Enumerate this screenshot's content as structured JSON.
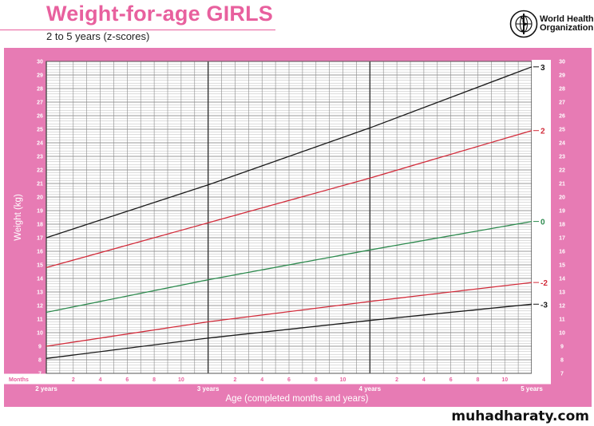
{
  "header": {
    "title": "Weight-for-age GIRLS",
    "subtitle": "2 to 5 years (z-scores)",
    "org_line1": "World Health",
    "org_line2": "Organization"
  },
  "watermark": "muhadharaty.com",
  "colors": {
    "pink": "#e77bb4",
    "title_pink": "#e8609e",
    "red": "#d22b3a",
    "green": "#2d8a4e",
    "black": "#1a1a1a"
  },
  "chart_data": {
    "type": "line",
    "xlabel": "Age (completed months and years)",
    "ylabel": "Weight (kg)",
    "x_unit_label": "Months",
    "x_range": [
      24,
      60
    ],
    "y_range": [
      7,
      30
    ],
    "year_labels": [
      {
        "month": 24,
        "label": "2 years"
      },
      {
        "month": 36,
        "label": "3 years"
      },
      {
        "month": 48,
        "label": "4 years"
      },
      {
        "month": 60,
        "label": "5 years"
      }
    ],
    "month_ticks": [
      {
        "month": 26,
        "label": "2"
      },
      {
        "month": 28,
        "label": "4"
      },
      {
        "month": 30,
        "label": "6"
      },
      {
        "month": 32,
        "label": "8"
      },
      {
        "month": 34,
        "label": "10"
      },
      {
        "month": 38,
        "label": "2"
      },
      {
        "month": 40,
        "label": "4"
      },
      {
        "month": 42,
        "label": "6"
      },
      {
        "month": 44,
        "label": "8"
      },
      {
        "month": 46,
        "label": "10"
      },
      {
        "month": 50,
        "label": "2"
      },
      {
        "month": 52,
        "label": "4"
      },
      {
        "month": 54,
        "label": "6"
      },
      {
        "month": 56,
        "label": "8"
      },
      {
        "month": 58,
        "label": "10"
      }
    ],
    "y_ticks": [
      7,
      8,
      9,
      10,
      11,
      12,
      13,
      14,
      15,
      16,
      17,
      18,
      19,
      20,
      21,
      22,
      23,
      24,
      25,
      26,
      27,
      28,
      29,
      30
    ],
    "grid": true,
    "series": [
      {
        "name": "3",
        "color": "#1a1a1a",
        "x": [
          24,
          36,
          48,
          60
        ],
        "y": [
          17.0,
          20.9,
          25.1,
          29.6
        ]
      },
      {
        "name": "2",
        "color": "#d22b3a",
        "x": [
          24,
          36,
          48,
          60
        ],
        "y": [
          14.8,
          18.1,
          21.4,
          24.9
        ]
      },
      {
        "name": "0",
        "color": "#2d8a4e",
        "x": [
          24,
          36,
          48,
          60
        ],
        "y": [
          11.5,
          13.9,
          16.1,
          18.2
        ]
      },
      {
        "name": "-2",
        "color": "#d22b3a",
        "x": [
          24,
          36,
          48,
          60
        ],
        "y": [
          9.0,
          10.8,
          12.3,
          13.7
        ]
      },
      {
        "name": "-3",
        "color": "#1a1a1a",
        "x": [
          24,
          36,
          48,
          60
        ],
        "y": [
          8.1,
          9.6,
          10.9,
          12.1
        ]
      }
    ]
  }
}
